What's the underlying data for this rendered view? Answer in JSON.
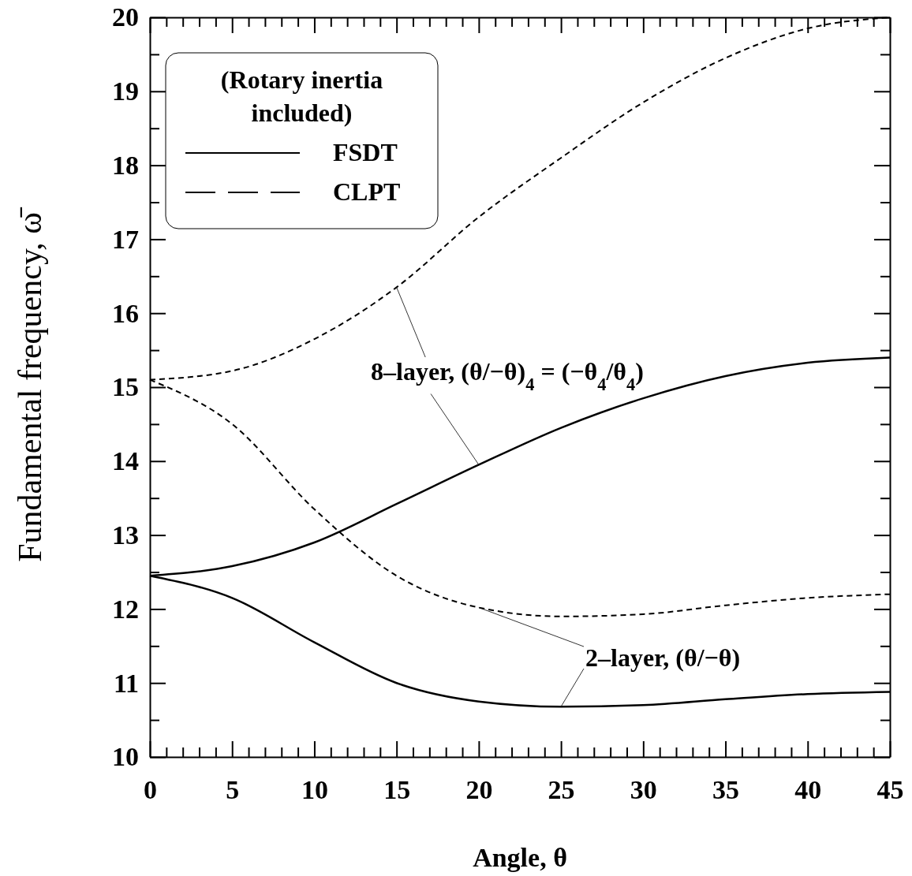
{
  "chart_data": {
    "type": "line",
    "xlabel": "Angle, θ",
    "ylabel": "Fundamental frequency, ω̄",
    "legend_title": "(Rotary inertia included)",
    "legend": "top left",
    "x": [
      0,
      5,
      10,
      15,
      20,
      25,
      30,
      35,
      40,
      45
    ],
    "xlim": [
      0,
      45
    ],
    "ylim": [
      10,
      20
    ],
    "xticks": [
      0,
      {
        "value": 1,
        "label": null
      },
      {
        "value": 2,
        "label": null
      },
      {
        "value": 3,
        "label": null
      },
      {
        "value": 4,
        "label": null
      },
      5,
      {
        "value": 6,
        "label": null
      },
      {
        "value": 7,
        "label": null
      },
      {
        "value": 8,
        "label": null
      },
      {
        "value": 9,
        "label": null
      },
      10,
      {
        "value": 11,
        "label": null
      },
      {
        "value": 12,
        "label": null
      },
      {
        "value": 13,
        "label": null
      },
      {
        "value": 14,
        "label": null
      },
      15,
      {
        "value": 16,
        "label": null
      },
      {
        "value": 17,
        "label": null
      },
      {
        "value": 18,
        "label": null
      },
      {
        "value": 19,
        "label": null
      },
      20,
      {
        "value": 21,
        "label": null
      },
      {
        "value": 22,
        "label": null
      },
      {
        "value": 23,
        "label": null
      },
      {
        "value": 24,
        "label": null
      },
      25,
      {
        "value": 26,
        "label": null
      },
      {
        "value": 27,
        "label": null
      },
      {
        "value": 28,
        "label": null
      },
      {
        "value": 29,
        "label": null
      },
      30,
      {
        "value": 31,
        "label": null
      },
      {
        "value": 32,
        "label": null
      },
      {
        "value": 33,
        "label": null
      },
      {
        "value": 34,
        "label": null
      },
      35,
      {
        "value": 36,
        "label": null
      },
      {
        "value": 37,
        "label": null
      },
      {
        "value": 38,
        "label": null
      },
      {
        "value": 39,
        "label": null
      },
      40,
      {
        "value": 41,
        "label": null
      },
      {
        "value": 42,
        "label": null
      },
      {
        "value": 43,
        "label": null
      },
      {
        "value": 44,
        "label": null
      },
      45
    ],
    "yticks": [
      10,
      {
        "value": 10.5,
        "label": null
      },
      11,
      {
        "value": 11.5,
        "label": null
      },
      12,
      {
        "value": 12.5,
        "label": null
      },
      13,
      {
        "value": 13.5,
        "label": null
      },
      14,
      {
        "value": 14.5,
        "label": null
      },
      15,
      {
        "value": 15.5,
        "label": null
      },
      16,
      {
        "value": 16.5,
        "label": null
      },
      17,
      {
        "value": 17.5,
        "label": null
      },
      18,
      {
        "value": 18.5,
        "label": null
      },
      19,
      {
        "value": 19.5,
        "label": null
      },
      20
    ],
    "series": [
      {
        "name": "CLPT",
        "color": "#000000",
        "line_style": "dashed",
        "values": [
          15.1,
          15.22,
          15.65,
          16.35,
          17.3,
          18.1,
          18.85,
          19.45,
          19.85,
          20.0
        ]
      },
      {
        "name": "FSDT",
        "color": "#000000",
        "line_style": "solid",
        "values": [
          12.45,
          12.58,
          12.9,
          13.42,
          13.95,
          14.45,
          14.85,
          15.15,
          15.33,
          15.4
        ]
      },
      {
        "color": "#000000",
        "line_style": "dashed",
        "values": [
          15.1,
          14.5,
          13.35,
          12.45,
          12.02,
          11.9,
          11.93,
          12.05,
          12.15,
          12.2
        ]
      },
      {
        "color": "#000000",
        "line_style": "solid",
        "values": [
          12.45,
          12.15,
          11.55,
          11.0,
          10.75,
          10.68,
          10.7,
          10.78,
          10.85,
          10.88
        ]
      }
    ],
    "annotations": [
      {
        "text": "8–layer, (θ/−θ)$_{4}$ = (−θ$_{4}$/θ$_{4}$)",
        "x": 20,
        "y": 13.95
      },
      {
        "text": "2–layer, (θ/−θ)",
        "x": 25,
        "y": 10.68
      }
    ]
  }
}
